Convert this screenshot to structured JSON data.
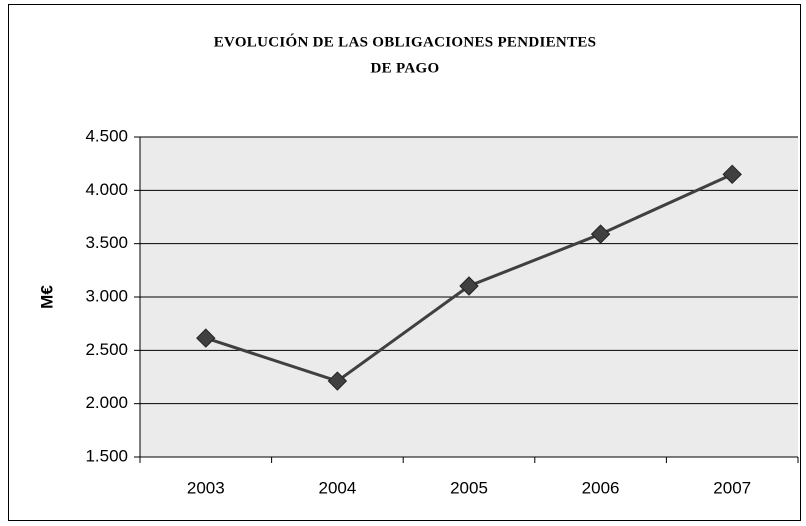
{
  "chart_data": {
    "type": "line",
    "title": [
      "EVOLUCIÓN DE LAS OBLIGACIONES PENDIENTES",
      "DE PAGO"
    ],
    "y_label": "M€",
    "categories": [
      "2003",
      "2004",
      "2005",
      "2006",
      "2007"
    ],
    "series": [
      {
        "name": null,
        "color": "#404040",
        "values": [
          2615,
          2212,
          3103,
          3590,
          4150
        ]
      }
    ],
    "ylim": [
      1500,
      4500
    ],
    "yticks": [
      {
        "value": 1500,
        "label": "1.500"
      },
      {
        "value": 2000,
        "label": "2.000"
      },
      {
        "value": 2500,
        "label": "2.500"
      },
      {
        "value": 3000,
        "label": "3.000"
      },
      {
        "value": 3500,
        "label": "3.500"
      },
      {
        "value": 4000,
        "label": "4.000"
      },
      {
        "value": 4500,
        "label": "4.500"
      }
    ],
    "grid": true
  }
}
